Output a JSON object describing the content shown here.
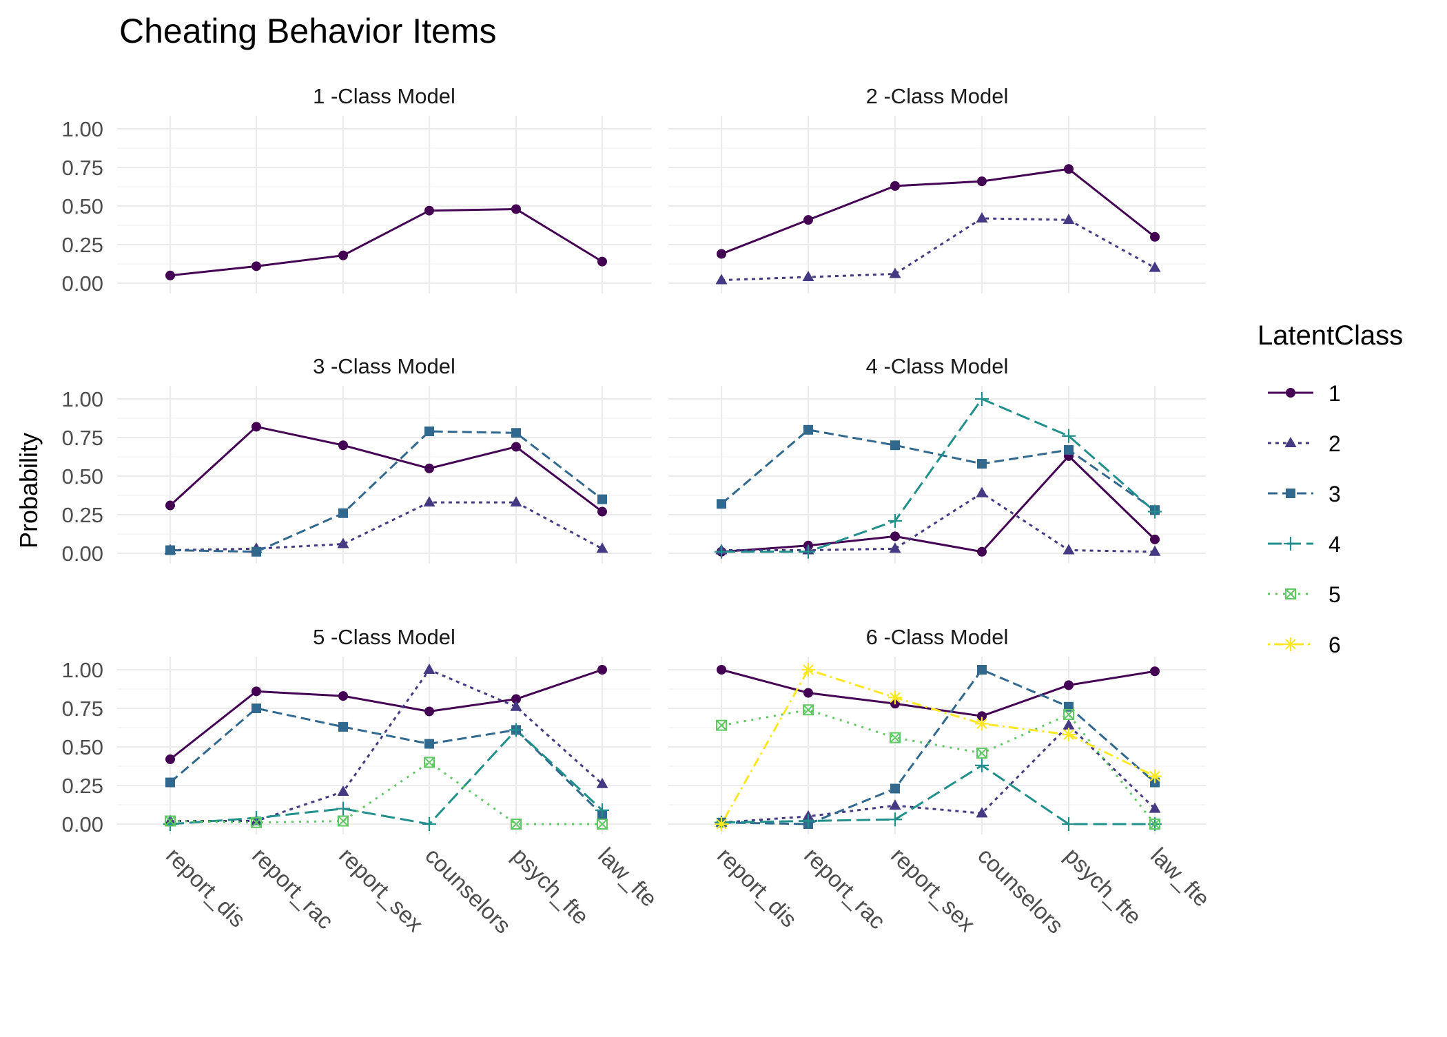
{
  "chart_data": {
    "type": "line",
    "title": "Cheating Behavior Items",
    "ylabel": "Probability",
    "xlabel": "",
    "categories": [
      "report_dis",
      "report_rac",
      "report_sex",
      "counselors",
      "psych_fte",
      "law_fte"
    ],
    "yticks": [
      "0.00",
      "0.25",
      "0.50",
      "0.75",
      "1.00"
    ],
    "ylim": [
      0,
      1
    ],
    "grid": true,
    "facets": [
      {
        "title": "1 -Class Model",
        "series": [
          {
            "class": "1",
            "values": [
              0.05,
              0.11,
              0.18,
              0.47,
              0.48,
              0.14
            ]
          }
        ]
      },
      {
        "title": "2 -Class Model",
        "series": [
          {
            "class": "1",
            "values": [
              0.19,
              0.41,
              0.63,
              0.66,
              0.74,
              0.3
            ]
          },
          {
            "class": "2",
            "values": [
              0.02,
              0.04,
              0.06,
              0.42,
              0.41,
              0.1
            ]
          }
        ]
      },
      {
        "title": "3 -Class Model",
        "series": [
          {
            "class": "1",
            "values": [
              0.31,
              0.82,
              0.7,
              0.55,
              0.69,
              0.27
            ]
          },
          {
            "class": "2",
            "values": [
              0.02,
              0.03,
              0.06,
              0.33,
              0.33,
              0.03
            ]
          },
          {
            "class": "3",
            "values": [
              0.02,
              0.01,
              0.26,
              0.79,
              0.78,
              0.35
            ]
          }
        ]
      },
      {
        "title": "4 -Class Model",
        "series": [
          {
            "class": "1",
            "values": [
              0.01,
              0.05,
              0.11,
              0.01,
              0.63,
              0.09
            ]
          },
          {
            "class": "2",
            "values": [
              0.02,
              0.02,
              0.03,
              0.39,
              0.02,
              0.01
            ]
          },
          {
            "class": "3",
            "values": [
              0.32,
              0.8,
              0.7,
              0.58,
              0.67,
              0.28
            ]
          },
          {
            "class": "4",
            "values": [
              0.01,
              0.01,
              0.21,
              1.0,
              0.76,
              0.27
            ]
          }
        ]
      },
      {
        "title": "5 -Class Model",
        "series": [
          {
            "class": "1",
            "values": [
              0.42,
              0.86,
              0.83,
              0.73,
              0.81,
              1.0
            ]
          },
          {
            "class": "2",
            "values": [
              0.02,
              0.02,
              0.21,
              1.0,
              0.76,
              0.26
            ]
          },
          {
            "class": "3",
            "values": [
              0.27,
              0.75,
              0.63,
              0.52,
              0.61,
              0.06
            ]
          },
          {
            "class": "4",
            "values": [
              0.0,
              0.04,
              0.1,
              0.0,
              0.61,
              0.09
            ]
          },
          {
            "class": "5",
            "values": [
              0.02,
              0.01,
              0.02,
              0.4,
              0.0,
              0.0
            ]
          }
        ]
      },
      {
        "title": "6 -Class Model",
        "series": [
          {
            "class": "1",
            "values": [
              1.0,
              0.85,
              0.78,
              0.7,
              0.9,
              0.99
            ]
          },
          {
            "class": "2",
            "values": [
              0.01,
              0.05,
              0.12,
              0.07,
              0.64,
              0.1
            ]
          },
          {
            "class": "3",
            "values": [
              0.01,
              0.0,
              0.23,
              1.0,
              0.76,
              0.27
            ]
          },
          {
            "class": "4",
            "values": [
              0.01,
              0.02,
              0.03,
              0.38,
              0.0,
              0.0
            ]
          },
          {
            "class": "5",
            "values": [
              0.64,
              0.74,
              0.56,
              0.46,
              0.71,
              0.0
            ]
          },
          {
            "class": "6",
            "values": [
              0.0,
              1.0,
              0.82,
              0.65,
              0.58,
              0.31
            ]
          }
        ]
      }
    ],
    "legend": {
      "title": "LatentClass",
      "placement": "right",
      "entries": [
        {
          "label": "1",
          "color": "#440154",
          "shape": "circle",
          "linetype": "solid"
        },
        {
          "label": "2",
          "color": "#443A83",
          "shape": "triangle",
          "linetype": "dotted"
        },
        {
          "label": "3",
          "color": "#31688E",
          "shape": "square",
          "linetype": "dashed"
        },
        {
          "label": "4",
          "color": "#21908C",
          "shape": "plus",
          "linetype": "longdash"
        },
        {
          "label": "5",
          "color": "#5EC962",
          "shape": "square-cross",
          "linetype": "dotted-fine"
        },
        {
          "label": "6",
          "color": "#FDE725",
          "shape": "asterisk",
          "linetype": "dotdash"
        }
      ]
    }
  }
}
